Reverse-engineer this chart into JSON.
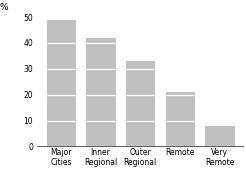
{
  "categories": [
    "Major\nCities",
    "Inner\nRegional",
    "Outer\nRegional",
    "Remote",
    "Very\nRemote"
  ],
  "values": [
    49,
    42,
    33,
    21,
    8
  ],
  "bar_color": "#c0c0c0",
  "bar_edge_color": "#aaaaaa",
  "ylabel": "%",
  "ylim": [
    0,
    50
  ],
  "yticks": [
    0,
    10,
    20,
    30,
    40,
    50
  ],
  "background_color": "#ffffff",
  "tick_fontsize": 5.5,
  "bar_width": 0.72
}
